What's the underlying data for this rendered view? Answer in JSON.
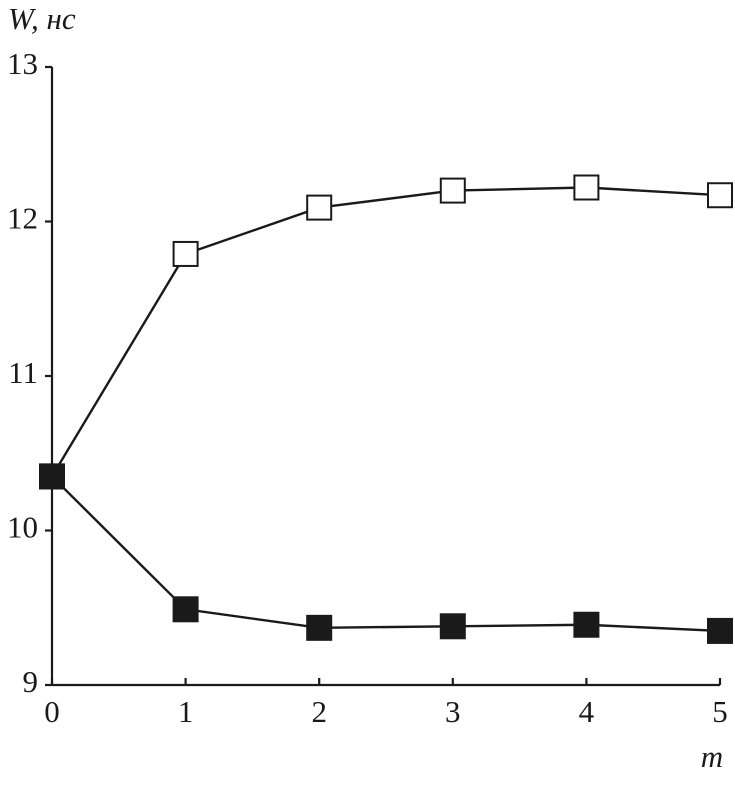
{
  "chart_data": {
    "type": "line",
    "y_label": "W, нс",
    "x_label": "m",
    "x": [
      0,
      1,
      2,
      3,
      4,
      5
    ],
    "xlim": [
      0,
      5
    ],
    "xticks": [
      0,
      1,
      2,
      3,
      4,
      5
    ],
    "ylim": [
      9,
      13
    ],
    "yticks": [
      9,
      10,
      11,
      12,
      13
    ],
    "grid": false,
    "series": [
      {
        "color": "#1a1a1a",
        "marker_fill": "#ffffff",
        "values": [
          10.35,
          11.79,
          12.09,
          12.2,
          12.22,
          12.17
        ]
      },
      {
        "color": "#1a1a1a",
        "marker_fill": "#1a1a1a",
        "values": [
          10.35,
          9.49,
          9.37,
          9.38,
          9.39,
          9.35
        ]
      }
    ]
  }
}
